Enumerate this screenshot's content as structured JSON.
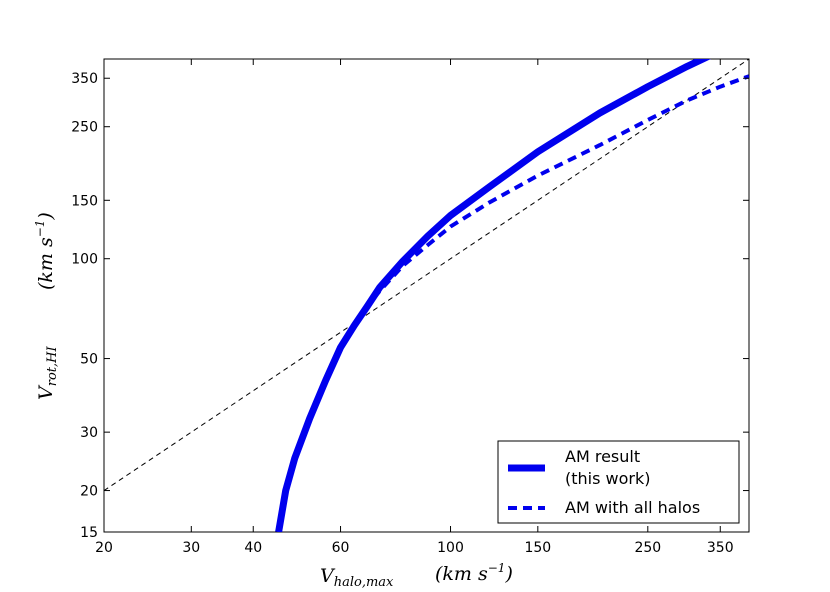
{
  "chart_data": {
    "type": "line",
    "xscale": "log",
    "yscale": "log",
    "xlim": [
      20,
      400
    ],
    "ylim": [
      15,
      400
    ],
    "xticks": [
      20,
      30,
      40,
      60,
      100,
      150,
      250,
      350
    ],
    "yticks": [
      15,
      20,
      30,
      50,
      100,
      150,
      250,
      350
    ],
    "xlabel_main": "V",
    "xlabel_sub": "halo,max",
    "xlabel_unit": "(km s",
    "xlabel_exp": "−1",
    "xlabel_close": ")",
    "ylabel_main": "V",
    "ylabel_sub": "rot,HI",
    "ylabel_unit": "(km s",
    "ylabel_exp": "−1",
    "ylabel_close": ")",
    "legend_position": "lower right",
    "grid": false,
    "series": [
      {
        "name_line1": "AM result",
        "name_line2": "(this work)",
        "color": "#0000ee",
        "style": "solid-thick",
        "x": [
          45,
          46.5,
          48.5,
          52,
          56,
          60,
          64,
          68,
          72,
          80,
          90,
          100,
          120,
          150,
          200,
          250,
          300,
          340
        ],
        "y": [
          15,
          20,
          25,
          33,
          43,
          54,
          63,
          72,
          82,
          98,
          117,
          135,
          165,
          210,
          275,
          330,
          380,
          415
        ]
      },
      {
        "name": "AM with all halos",
        "color": "#0000ee",
        "style": "dashed",
        "x": [
          45,
          46.5,
          48.5,
          52,
          56,
          60,
          64,
          68,
          72,
          80,
          90,
          100,
          120,
          150,
          200,
          250,
          300,
          350,
          400
        ],
        "y": [
          15,
          20,
          25,
          33,
          43,
          54,
          63,
          72,
          80,
          95,
          110,
          125,
          148,
          178,
          220,
          262,
          300,
          330,
          355
        ]
      },
      {
        "name": "one-to-one",
        "color": "#000000",
        "style": "thin-dashed",
        "x": [
          20,
          400
        ],
        "y": [
          20,
          400
        ]
      }
    ]
  }
}
